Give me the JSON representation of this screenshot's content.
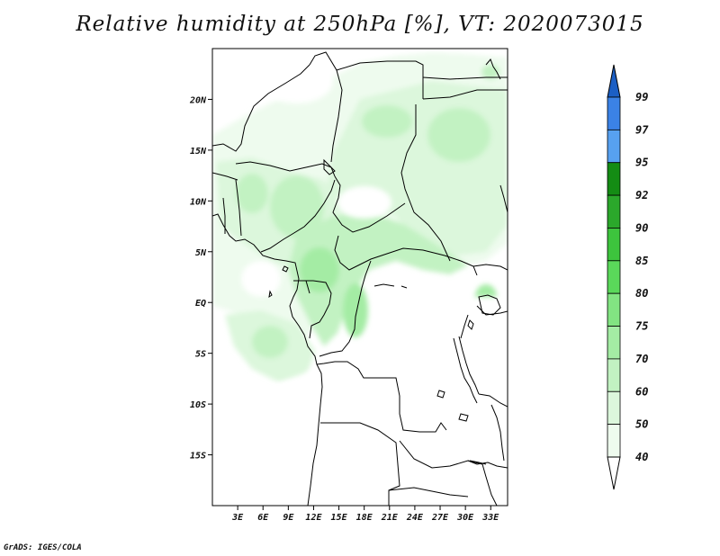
{
  "title": "Relative humidity at 250hPa [%], VT: 2020073015",
  "credit": "GrADS: IGES/COLA",
  "map": {
    "type": "map",
    "projection": "lat-lon",
    "lon_range": [
      0,
      35
    ],
    "lat_range": [
      -20,
      25
    ],
    "lat_ticks": [
      {
        "value": 20,
        "label": "20N"
      },
      {
        "value": 15,
        "label": "15N"
      },
      {
        "value": 10,
        "label": "10N"
      },
      {
        "value": 5,
        "label": "5N"
      },
      {
        "value": 0,
        "label": "EQ"
      },
      {
        "value": -5,
        "label": "5S"
      },
      {
        "value": -10,
        "label": "10S"
      },
      {
        "value": -15,
        "label": "15S"
      }
    ],
    "lon_ticks": [
      {
        "value": 3,
        "label": "3E"
      },
      {
        "value": 6,
        "label": "6E"
      },
      {
        "value": 9,
        "label": "9E"
      },
      {
        "value": 12,
        "label": "12E"
      },
      {
        "value": 15,
        "label": "15E"
      },
      {
        "value": 18,
        "label": "18E"
      },
      {
        "value": 21,
        "label": "21E"
      },
      {
        "value": 24,
        "label": "24E"
      },
      {
        "value": 27,
        "label": "27E"
      },
      {
        "value": 30,
        "label": "30E"
      },
      {
        "value": 33,
        "label": "33E"
      }
    ]
  },
  "colorbar": {
    "orientation": "vertical",
    "levels": [
      {
        "value": "99",
        "color": "#2a6fd6"
      },
      {
        "value": "97",
        "color": "#3b82e6"
      },
      {
        "value": "95",
        "color": "#57a1f0"
      },
      {
        "value": "92",
        "color": "#148c14"
      },
      {
        "value": "90",
        "color": "#2ba82b"
      },
      {
        "value": "85",
        "color": "#3dc43d"
      },
      {
        "value": "80",
        "color": "#5ad85a"
      },
      {
        "value": "75",
        "color": "#82e482"
      },
      {
        "value": "70",
        "color": "#a4eca4"
      },
      {
        "value": "60",
        "color": "#c2f2c2"
      },
      {
        "value": "50",
        "color": "#dcf7dc"
      },
      {
        "value": "40",
        "color": "#eefbee"
      }
    ],
    "top_arrow_color": "#1c5fc4",
    "bottom_arrow_color": "#ffffff"
  }
}
